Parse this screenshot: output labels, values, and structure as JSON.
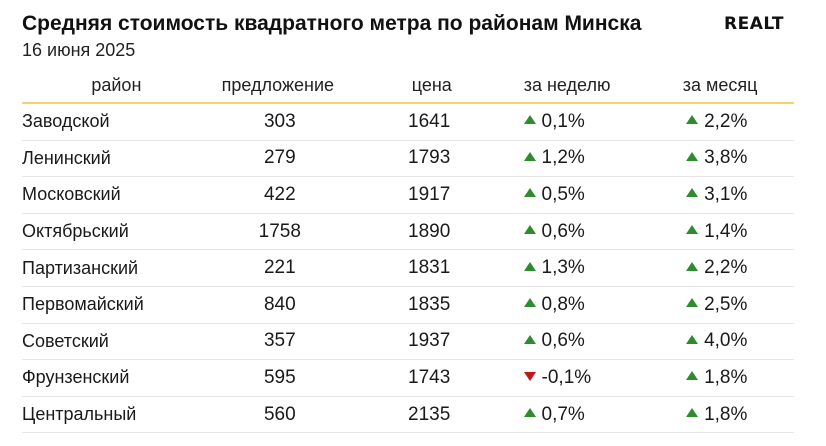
{
  "header": {
    "title": "Средняя стоимость квадратного метра по районам Минска",
    "date": "16 июня 2025",
    "brand": "REALT"
  },
  "colors": {
    "up": "#2e8b2e",
    "down": "#c0161c",
    "header_rule": "#f3d36a"
  },
  "chart_data": {
    "type": "table",
    "columns": [
      "район",
      "предложение",
      "цена",
      "за неделю",
      "за месяц"
    ],
    "rows": [
      {
        "district": "Заводской",
        "supply": "303",
        "price": "1641",
        "week": "0,1%",
        "week_dir": "up",
        "month": "2,2%",
        "month_dir": "up"
      },
      {
        "district": "Ленинский",
        "supply": "279",
        "price": "1793",
        "week": "1,2%",
        "week_dir": "up",
        "month": "3,8%",
        "month_dir": "up"
      },
      {
        "district": "Московский",
        "supply": "422",
        "price": "1917",
        "week": "0,5%",
        "week_dir": "up",
        "month": "3,1%",
        "month_dir": "up"
      },
      {
        "district": "Октябрьский",
        "supply": "1758",
        "price": "1890",
        "week": "0,6%",
        "week_dir": "up",
        "month": "1,4%",
        "month_dir": "up"
      },
      {
        "district": "Партизанский",
        "supply": "221",
        "price": "1831",
        "week": "1,3%",
        "week_dir": "up",
        "month": "2,2%",
        "month_dir": "up"
      },
      {
        "district": "Первомайский",
        "supply": "840",
        "price": "1835",
        "week": "0,8%",
        "week_dir": "up",
        "month": "2,5%",
        "month_dir": "up"
      },
      {
        "district": "Советский",
        "supply": "357",
        "price": "1937",
        "week": "0,6%",
        "week_dir": "up",
        "month": "4,0%",
        "month_dir": "up"
      },
      {
        "district": "Фрунзенский",
        "supply": "595",
        "price": "1743",
        "week": "-0,1%",
        "week_dir": "down",
        "month": "1,8%",
        "month_dir": "up"
      },
      {
        "district": "Центральный",
        "supply": "560",
        "price": "2135",
        "week": "0,7%",
        "week_dir": "up",
        "month": "1,8%",
        "month_dir": "up"
      }
    ]
  }
}
